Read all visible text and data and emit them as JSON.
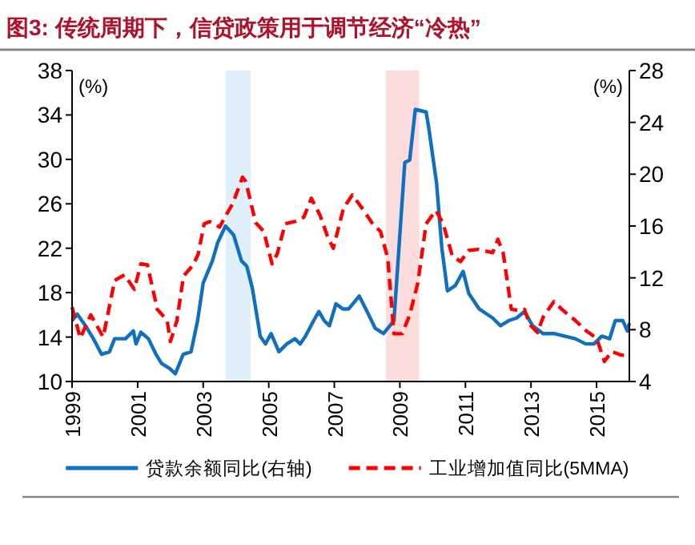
{
  "chart_data": {
    "type": "line",
    "title": "图3: 传统周期下，信贷政策用于调节经济“冷热”",
    "ylabel": "(%)",
    "y2label": "(%)",
    "xlim": [
      1999,
      2016
    ],
    "xticks": [
      1999,
      2001,
      2003,
      2005,
      2007,
      2009,
      2011,
      2013,
      2015
    ],
    "ylim": [
      10,
      38
    ],
    "yticks": [
      10,
      14,
      18,
      22,
      26,
      30,
      34,
      38
    ],
    "y2lim": [
      4,
      28
    ],
    "y2ticks": [
      4,
      8,
      12,
      16,
      20,
      24,
      28
    ],
    "legend": "bottom",
    "bands": [
      {
        "axis": "x",
        "from": 2003.68,
        "to": 2004.45,
        "color": "#dff0fb"
      },
      {
        "axis": "x",
        "from": 2008.58,
        "to": 2009.59,
        "color": "#fcdcdc"
      }
    ],
    "series": [
      {
        "name": "贷款余额同比(右轴)",
        "color": "#0f6fc0",
        "axis": "y2",
        "line_style": "solid",
        "x": [
          1999.0,
          1999.16,
          1999.41,
          1999.65,
          1999.9,
          2000.14,
          2000.3,
          2000.63,
          2000.87,
          2000.95,
          2001.1,
          2001.33,
          2001.56,
          2001.73,
          2001.98,
          2002.15,
          2002.39,
          2002.63,
          2002.83,
          2003.0,
          2003.28,
          2003.44,
          2003.68,
          2003.93,
          2004.17,
          2004.33,
          2004.5,
          2004.74,
          2004.9,
          2005.07,
          2005.31,
          2005.55,
          2005.8,
          2005.96,
          2006.12,
          2006.37,
          2006.53,
          2006.69,
          2006.85,
          2007.05,
          2007.26,
          2007.44,
          2007.76,
          2008.0,
          2008.25,
          2008.5,
          2008.82,
          2009.15,
          2009.3,
          2009.47,
          2009.8,
          2009.88,
          2010.12,
          2010.28,
          2010.45,
          2010.69,
          2010.93,
          2011.1,
          2011.42,
          2011.83,
          2012.07,
          2012.32,
          2012.56,
          2012.8,
          2013.05,
          2013.37,
          2013.7,
          2014.02,
          2014.35,
          2014.67,
          2014.92,
          2015.16,
          2015.4,
          2015.57,
          2015.8,
          2015.94,
          2016.0
        ],
        "values": [
          8.7,
          9.2,
          8.3,
          7.3,
          6.1,
          6.3,
          7.3,
          7.3,
          7.9,
          6.9,
          7.8,
          7.3,
          6.1,
          5.4,
          5.0,
          4.6,
          6.1,
          6.3,
          8.7,
          11.6,
          13.3,
          14.7,
          16.0,
          15.3,
          13.3,
          12.9,
          11.2,
          7.5,
          6.9,
          7.7,
          6.3,
          6.9,
          7.3,
          6.9,
          7.5,
          8.7,
          9.4,
          8.7,
          8.3,
          10.0,
          9.6,
          9.6,
          10.6,
          9.4,
          8.1,
          7.7,
          8.7,
          20.9,
          21.1,
          25.0,
          24.8,
          23.6,
          19.3,
          14.3,
          11.0,
          11.4,
          12.5,
          10.8,
          9.6,
          8.9,
          8.3,
          8.7,
          8.9,
          9.4,
          8.3,
          7.7,
          7.7,
          7.5,
          7.3,
          6.9,
          6.9,
          7.5,
          7.3,
          8.7,
          8.7,
          7.9,
          8.5
        ]
      },
      {
        "name": "工业增加值同比(5MMA)",
        "color": "#ff0000",
        "axis": "y",
        "line_style": "dashed",
        "x": [
          1999.0,
          1999.25,
          1999.57,
          1999.95,
          2000.3,
          2000.6,
          2000.9,
          2001.1,
          2001.3,
          2001.6,
          2001.9,
          2002.0,
          2002.2,
          2002.4,
          2002.7,
          2002.85,
          2003.03,
          2003.2,
          2003.5,
          2003.7,
          2003.9,
          2004.2,
          2004.3,
          2004.6,
          2004.85,
          2005.1,
          2005.26,
          2005.5,
          2005.8,
          2006.07,
          2006.3,
          2006.56,
          2006.8,
          2006.97,
          2007.28,
          2007.55,
          2007.85,
          2008.17,
          2008.41,
          2008.63,
          2008.82,
          2009.07,
          2009.3,
          2009.55,
          2009.8,
          2010.1,
          2010.32,
          2010.6,
          2010.85,
          2011.1,
          2011.4,
          2011.83,
          2011.99,
          2012.15,
          2012.4,
          2012.64,
          2012.8,
          2012.97,
          2013.2,
          2013.37,
          2013.7,
          2013.94,
          2014.35,
          2014.67,
          2015.0,
          2015.24,
          2015.46,
          2015.73,
          2015.98
        ],
        "values": [
          16.7,
          13.9,
          16.0,
          14.0,
          19.1,
          19.6,
          18.3,
          20.6,
          20.5,
          16.5,
          15.5,
          13.6,
          15.5,
          19.5,
          20.5,
          21.5,
          24.2,
          24.4,
          23.9,
          25.0,
          26.0,
          28.4,
          28.0,
          24.3,
          23.5,
          20.6,
          21.5,
          24.2,
          24.4,
          24.8,
          26.5,
          25.0,
          23.0,
          22.0,
          25.6,
          26.8,
          25.6,
          24.2,
          23.5,
          21.1,
          14.3,
          14.3,
          16.0,
          18.9,
          24.2,
          25.4,
          24.2,
          21.3,
          20.8,
          21.8,
          21.9,
          21.6,
          22.8,
          21.6,
          16.5,
          16.4,
          16.5,
          15.1,
          14.4,
          15.8,
          17.2,
          16.5,
          15.5,
          14.6,
          13.9,
          11.8,
          12.7,
          12.4,
          12.3
        ]
      }
    ]
  }
}
